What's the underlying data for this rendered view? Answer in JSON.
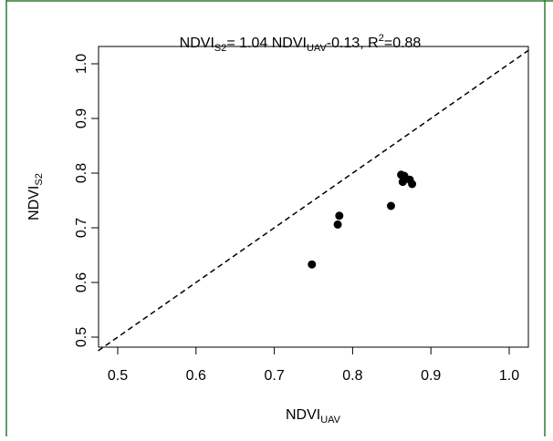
{
  "chart_data": {
    "type": "scatter",
    "title": {
      "base": "NDVI",
      "sub": "S2",
      "mid": "= 1.04 NDVI",
      "sub2": "UAV",
      "mid2": "-0.13, R",
      "sup": "2",
      "tail": "=0.88"
    },
    "xlabel": {
      "base": "NDVI",
      "sub": "UAV"
    },
    "ylabel": {
      "base": "NDVI",
      "sub": "S2"
    },
    "xlim": [
      0.5,
      1.0
    ],
    "ylim": [
      0.5,
      1.0
    ],
    "xticks": [
      "0.5",
      "0.6",
      "0.7",
      "0.8",
      "0.9",
      "1.0"
    ],
    "yticks": [
      "0.5",
      "0.6",
      "0.7",
      "0.8",
      "0.9",
      "1.0"
    ],
    "reference_line": {
      "style": "dashed",
      "slope": 1,
      "intercept": 0
    },
    "points": [
      {
        "x": 0.748,
        "y": 0.633
      },
      {
        "x": 0.781,
        "y": 0.706
      },
      {
        "x": 0.783,
        "y": 0.722
      },
      {
        "x": 0.849,
        "y": 0.74
      },
      {
        "x": 0.862,
        "y": 0.797
      },
      {
        "x": 0.866,
        "y": 0.795
      },
      {
        "x": 0.864,
        "y": 0.784
      },
      {
        "x": 0.873,
        "y": 0.788
      },
      {
        "x": 0.876,
        "y": 0.78
      }
    ],
    "grid": false,
    "colors": {
      "frame": "#2e7d32",
      "points": "#000000",
      "line": "#000000"
    }
  }
}
